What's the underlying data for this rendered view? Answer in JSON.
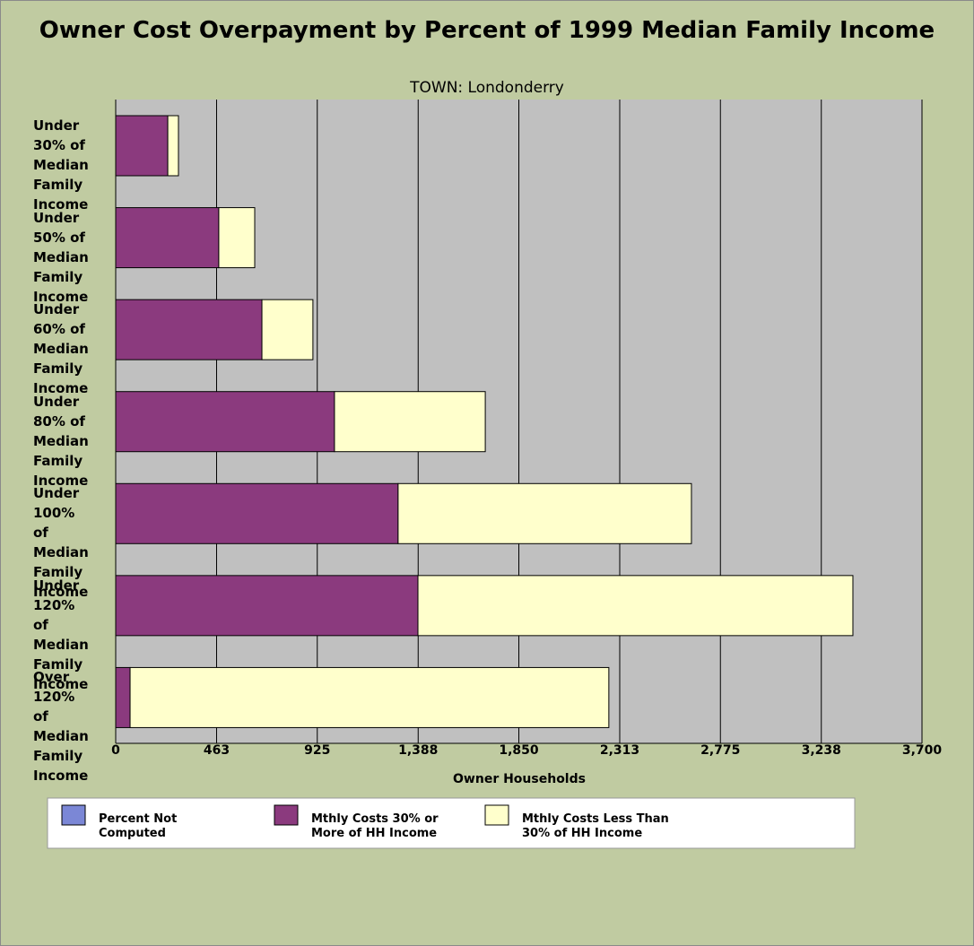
{
  "chart_data": {
    "type": "bar",
    "orientation": "horizontal",
    "stacked": true,
    "title": "Owner Cost Overpayment by Percent of 1999 Median Family Income",
    "subtitle": "TOWN: Londonderry",
    "x_label": "Owner Households",
    "categories": [
      "Under 30% of Median Family Income",
      "Under 50% of Median Family Income",
      "Under 60% of Median Family Income",
      "Under 80% of Median Family Income",
      "Under 100% of Median Family Income",
      "Under 120% of Median Family Income",
      "Over 120% of Median Family Income"
    ],
    "series": [
      {
        "name": "Percent Not Computed",
        "color": "#7b87d6",
        "values": [
          0,
          0,
          0,
          0,
          0,
          0,
          0
        ]
      },
      {
        "name": "Mthly Costs 30% or More of HH Income",
        "color": "#8b3a7e",
        "values": [
          239,
          473,
          671,
          1004,
          1296,
          1387,
          66
        ]
      },
      {
        "name": "Mthly Costs Less Than 30% of HH Income",
        "color": "#ffffcc",
        "values": [
          49,
          165,
          234,
          692,
          1346,
          1996,
          2197
        ]
      }
    ],
    "xlim": [
      0,
      3700
    ],
    "xticks": [
      0,
      463,
      925,
      {
        "value": 1388,
        "label": "1,388"
      },
      {
        "value": 1850,
        "label": "1,850"
      },
      {
        "value": 2313,
        "label": "2,313"
      },
      {
        "value": 2775,
        "label": "2,775"
      },
      {
        "value": 3238,
        "label": "3,238"
      },
      {
        "value": 3700,
        "label": "3,700"
      }
    ],
    "grid": true,
    "legend": "bottom"
  }
}
